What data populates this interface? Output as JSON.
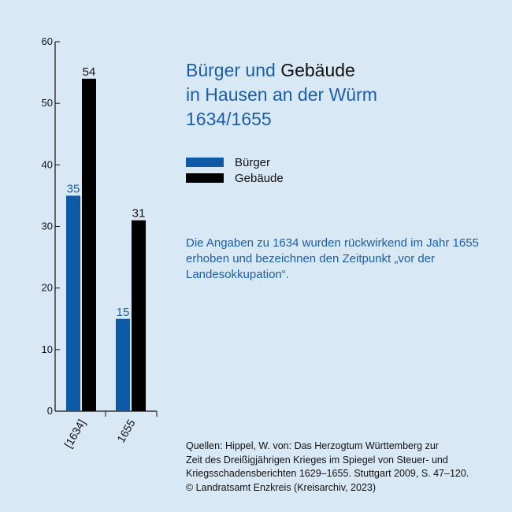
{
  "title": {
    "line1_part1": "Bürger und",
    "line1_part2": "Gebäude",
    "line2": "in Hausen an der Würm",
    "line3": "1634/1655"
  },
  "note": "Die Angaben zu 1634 wurden rückwirkend im Jahr 1655 erhoben und bezeichnen den Zeitpunkt „vor der Landesokkupation“.",
  "sources": [
    "Quellen: Hippel, W. von: Das Herzogtum Württemberg zur",
    "Zeit des Dreißigjährigen Krieges im Spiegel von Steuer- und",
    "Kriegsschadensberichten 1629–1655. Stuttgart 2009, S. 47–120.",
    "© Landratsamt Enzkreis (Kreisarchiv, 2023)"
  ],
  "chart_data": {
    "type": "bar",
    "categories": [
      "[1634]",
      "1655"
    ],
    "series": [
      {
        "name": "Bürger",
        "values": [
          35,
          15
        ],
        "color": "#0d5aa7",
        "label_color": "#1a5fa8"
      },
      {
        "name": "Gebäude",
        "values": [
          54,
          31
        ],
        "color": "#000000",
        "label_color": "#111111"
      }
    ],
    "ylim": [
      0,
      60
    ],
    "yticks": [
      0,
      10,
      20,
      30,
      40,
      50,
      60
    ],
    "grid": false,
    "legend": "right",
    "xlabel": "",
    "ylabel": ""
  }
}
